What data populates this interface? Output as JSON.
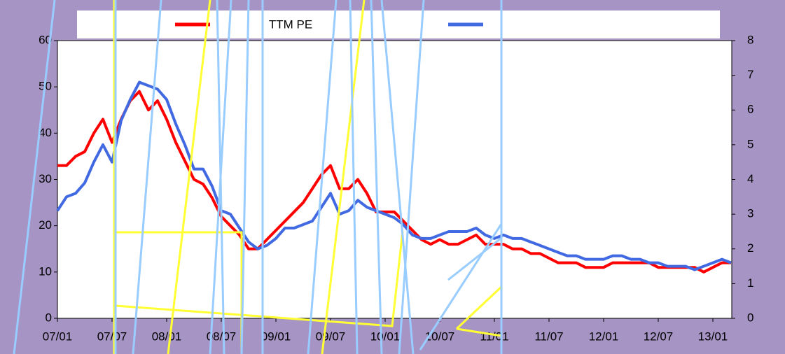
{
  "chart_data": {
    "type": "line",
    "categories": [
      "07/01",
      null,
      null,
      null,
      null,
      null,
      "07/07",
      null,
      null,
      null,
      null,
      null,
      "08/01",
      null,
      null,
      null,
      null,
      null,
      "08/07",
      null,
      null,
      null,
      null,
      null,
      "09/01",
      null,
      null,
      null,
      null,
      null,
      "09/07",
      null,
      null,
      null,
      null,
      null,
      "10/01",
      null,
      null,
      null,
      null,
      null,
      "10/07",
      null,
      null,
      null,
      null,
      null,
      "11/01",
      null,
      null,
      null,
      null,
      null,
      "11/07",
      null,
      null,
      null,
      null,
      null,
      "12/01",
      null,
      null,
      null,
      null,
      null,
      "12/07",
      null,
      null,
      null,
      null,
      null,
      "13/01",
      null,
      null
    ],
    "series": [
      {
        "name": "TTM PE",
        "color": "#ff0000",
        "values": [
          33,
          33,
          35,
          36,
          40,
          43,
          38,
          43,
          47,
          49,
          45,
          47,
          43,
          38,
          34,
          30,
          29,
          26,
          22,
          20,
          18,
          15,
          15,
          17,
          19,
          21,
          23,
          25,
          28,
          31,
          33,
          28,
          28,
          30,
          27,
          23,
          23,
          23,
          21,
          19,
          17,
          16,
          17,
          16,
          16,
          17,
          18,
          16,
          16,
          16,
          15,
          15,
          14,
          14,
          13,
          12,
          12,
          12,
          11,
          11,
          11,
          12,
          12,
          12,
          12,
          12,
          11,
          11,
          11,
          11,
          11,
          10,
          11,
          12,
          12
        ]
      },
      {
        "color": "#4169e1",
        "axis": "y2",
        "values": [
          3.1,
          3.5,
          3.6,
          3.9,
          4.5,
          5.0,
          4.5,
          5.7,
          6.3,
          6.8,
          6.7,
          6.6,
          6.3,
          5.6,
          5.0,
          4.3,
          4.3,
          3.8,
          3.1,
          3.0,
          2.6,
          2.2,
          2.0,
          2.1,
          2.3,
          2.6,
          2.6,
          2.7,
          2.8,
          3.2,
          3.6,
          3.0,
          3.1,
          3.4,
          3.2,
          3.1,
          3.0,
          2.9,
          2.7,
          2.4,
          2.3,
          2.3,
          2.4,
          2.5,
          2.5,
          2.5,
          2.6,
          2.4,
          2.3,
          2.4,
          2.3,
          2.3,
          2.2,
          2.1,
          2.0,
          1.9,
          1.8,
          1.8,
          1.7,
          1.7,
          1.7,
          1.8,
          1.8,
          1.7,
          1.7,
          1.6,
          1.6,
          1.5,
          1.5,
          1.5,
          1.4,
          1.5,
          1.6,
          1.7,
          1.6
        ]
      }
    ],
    "ylim": [
      0,
      60
    ],
    "yticks": [
      0,
      10,
      20,
      30,
      40,
      50,
      60
    ],
    "y2lim": [
      0,
      8
    ],
    "y2ticks": [
      0,
      1,
      2,
      3,
      4,
      5,
      6,
      7,
      8
    ],
    "grid": false
  }
}
